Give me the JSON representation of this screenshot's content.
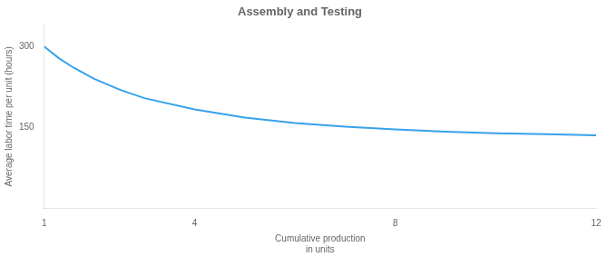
{
  "chart_data": {
    "type": "line",
    "title": "Assembly and Testing",
    "ylabel": "Average labor time per unit (hours)",
    "xlabel": [
      "Cumulative production",
      "in units"
    ],
    "x": [
      1,
      1.3,
      1.6,
      2,
      2.5,
      3,
      4,
      5,
      6,
      7,
      8,
      9,
      10,
      11,
      12
    ],
    "values": [
      300,
      278,
      260,
      240,
      220,
      204,
      183,
      168,
      158,
      151,
      146,
      142,
      139,
      137,
      135
    ],
    "xlim": [
      1,
      12
    ],
    "xticks": [
      1,
      4,
      8,
      12
    ],
    "ylim": [
      0,
      340
    ],
    "yticks": [
      150,
      300
    ],
    "grid": false
  }
}
